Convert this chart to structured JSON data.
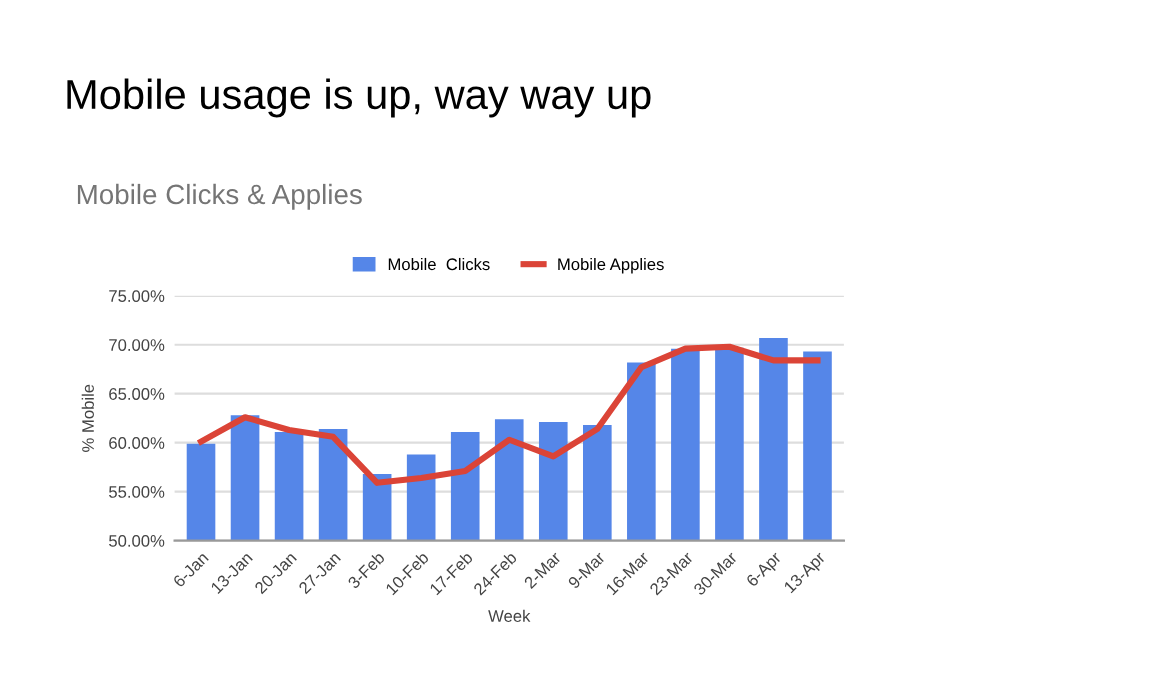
{
  "chart_data": {
    "type": "bar",
    "title": "Mobile usage is up, way way up",
    "subtitle": "Mobile Clicks & Applies",
    "xlabel": "Week",
    "ylabel": "% Mobile",
    "categories": [
      "6-Jan",
      "13-Jan",
      "20-Jan",
      "27-Jan",
      "3-Feb",
      "10-Feb",
      "17-Feb",
      "24-Feb",
      "2-Mar",
      "9-Mar",
      "16-Mar",
      "23-Mar",
      "30-Mar",
      "6-Apr",
      "13-Apr"
    ],
    "series": [
      {
        "name": "Mobile  Clicks",
        "color": "#5586e8",
        "values": [
          59.9,
          62.8,
          61.1,
          61.4,
          56.8,
          58.8,
          61.1,
          62.4,
          62.1,
          61.8,
          68.2,
          69.6,
          69.7,
          70.7,
          69.3
        ]
      },
      {
        "name": "Mobile Applies",
        "type": "line",
        "color": "#db4437",
        "values": [
          60.1,
          62.6,
          61.3,
          60.6,
          55.9,
          56.4,
          57.1,
          60.3,
          58.6,
          61.4,
          67.7,
          69.6,
          69.8,
          68.4,
          68.4
        ]
      }
    ],
    "ylim": [
      50,
      75
    ],
    "yticks": [
      {
        "value": 50,
        "label": "50.00%"
      },
      {
        "value": 55,
        "label": "55.00%"
      },
      {
        "value": 60,
        "label": "60.00%"
      },
      {
        "value": 65,
        "label": "65.00%"
      },
      {
        "value": 70,
        "label": "70.00%"
      },
      {
        "value": 75,
        "label": "75.00%"
      }
    ],
    "grid": "y",
    "legend": "top",
    "marker": "none",
    "line_style": "solid"
  }
}
